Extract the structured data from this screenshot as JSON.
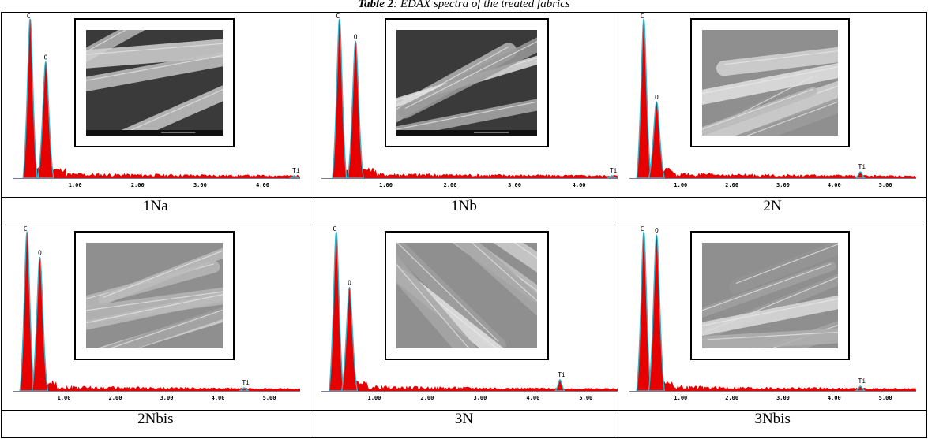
{
  "caption": {
    "label": "Table 2",
    "text": ": EDAX spectra of the treated fabrics"
  },
  "spectrum_labels": {
    "peak_c": "C",
    "peak_o": "O",
    "peak_ti": "Ti"
  },
  "colors": {
    "spectrum_fill": "#e60000",
    "peak_outline": "#33b5cc",
    "baseline": "#7a7aa0",
    "sem_gray": "#8a8a8a"
  },
  "panels": [
    {
      "name": "1Na",
      "ticks": [
        "1.00",
        "2.00",
        "3.00",
        "4.00"
      ],
      "has_scalebar": true,
      "peaks": {
        "c": 1.0,
        "o": 0.73,
        "ti": 0.01
      }
    },
    {
      "name": "1Nb",
      "ticks": [
        "1.00",
        "2.00",
        "3.00",
        "4.00"
      ],
      "has_scalebar": true,
      "peaks": {
        "c": 1.0,
        "o": 0.86,
        "ti": 0.01
      }
    },
    {
      "name": "2N",
      "ticks": [
        "1.00",
        "2.00",
        "3.00",
        "4.00",
        "5.00"
      ],
      "has_scalebar": false,
      "peaks": {
        "c": 1.0,
        "o": 0.48,
        "ti": 0.04
      }
    },
    {
      "name": "2Nbis",
      "ticks": [
        "1.00",
        "2.00",
        "3.00",
        "4.00",
        "5.00"
      ],
      "has_scalebar": false,
      "peaks": {
        "c": 1.0,
        "o": 0.84,
        "ti": 0.02
      }
    },
    {
      "name": "3N",
      "ticks": [
        "1.00",
        "2.00",
        "3.00",
        "4.00",
        "5.00"
      ],
      "has_scalebar": false,
      "peaks": {
        "c": 1.0,
        "o": 0.65,
        "ti": 0.07
      }
    },
    {
      "name": "3Nbis",
      "ticks": [
        "1.00",
        "2.00",
        "3.00",
        "4.00",
        "5.00"
      ],
      "has_scalebar": false,
      "peaks": {
        "c": 1.0,
        "o": 0.98,
        "ti": 0.03
      }
    }
  ]
}
